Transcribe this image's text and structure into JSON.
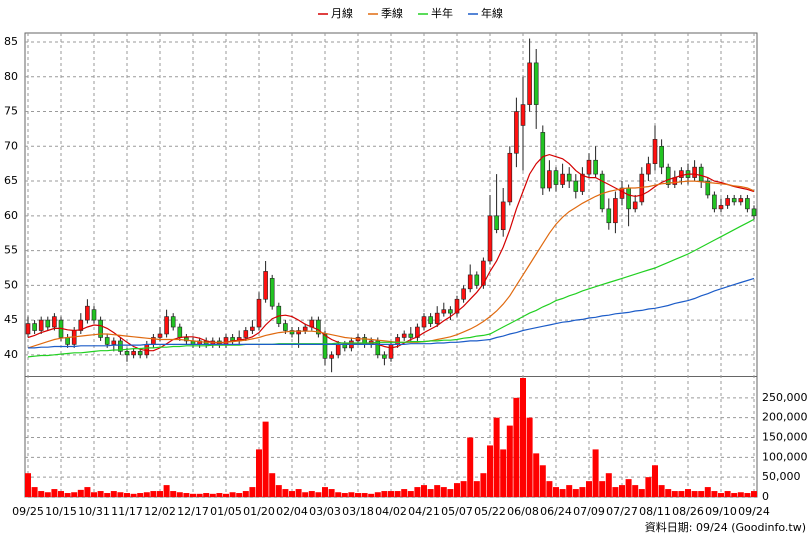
{
  "chart_data": [
    {
      "type": "candlestick",
      "categories": [
        "09/25",
        null,
        null,
        null,
        null,
        "10/15",
        null,
        null,
        null,
        null,
        "10/31",
        null,
        null,
        null,
        null,
        "11/17",
        null,
        null,
        null,
        null,
        "12/02",
        null,
        null,
        null,
        null,
        "12/17",
        null,
        null,
        null,
        null,
        "01/05",
        null,
        null,
        null,
        null,
        "01/20",
        null,
        null,
        null,
        null,
        "02/04",
        null,
        null,
        null,
        null,
        "03/03",
        null,
        null,
        null,
        null,
        "03/18",
        null,
        null,
        null,
        null,
        "04/02",
        null,
        null,
        null,
        null,
        "04/21",
        null,
        null,
        null,
        null,
        "05/07",
        null,
        null,
        null,
        null,
        "05/22",
        null,
        null,
        null,
        null,
        "06/08",
        null,
        null,
        null,
        null,
        "06/24",
        null,
        null,
        null,
        null,
        "07/09",
        null,
        null,
        null,
        null,
        "07/27",
        null,
        null,
        null,
        null,
        "08/11",
        null,
        null,
        null,
        null,
        "08/26",
        null,
        null,
        null,
        null,
        "09/10",
        null,
        null,
        null,
        null,
        "09/24"
      ],
      "open": [
        43.0,
        44.5,
        43.5,
        45.0,
        44.0,
        45.0,
        42.5,
        41.5,
        43.5,
        45.0,
        46.5,
        45.0,
        42.5,
        41.5,
        42.0,
        40.5,
        40.0,
        40.5,
        40.0,
        41.5,
        42.5,
        43.0,
        45.5,
        44.0,
        42.5,
        42.0,
        41.5,
        42.0,
        41.5,
        42.0,
        41.5,
        42.5,
        42.0,
        42.5,
        43.5,
        44.0,
        48.0,
        51.0,
        47.0,
        44.5,
        43.5,
        43.0,
        43.5,
        44.0,
        45.0,
        43.0,
        39.5,
        40.0,
        41.5,
        41.0,
        42.0,
        42.5,
        41.5,
        42.0,
        40.0,
        39.5,
        41.5,
        42.5,
        43.0,
        42.5,
        44.0,
        45.5,
        44.5,
        46.0,
        46.5,
        46.0,
        48.0,
        49.5,
        51.5,
        50.0,
        53.5,
        60.0,
        58.0,
        62.0,
        69.0,
        73.0,
        76.0,
        82.0,
        72.0,
        64.0,
        66.5,
        64.5,
        66.0,
        65.0,
        63.5,
        66.0,
        68.0,
        66.0,
        61.0,
        59.0,
        62.5,
        64.0,
        61.0,
        62.0,
        66.0,
        67.5,
        70.0,
        67.0,
        64.5,
        65.5,
        66.5,
        65.5,
        67.0,
        65.0,
        63.0,
        61.0,
        61.5,
        62.5,
        62.0,
        62.5,
        61.0
      ],
      "high": [
        45.5,
        45.0,
        45.5,
        45.5,
        46.0,
        45.5,
        43.0,
        44.0,
        46.0,
        48.0,
        47.0,
        45.5,
        43.0,
        42.5,
        42.5,
        41.0,
        41.0,
        41.0,
        42.0,
        43.0,
        44.0,
        46.5,
        46.0,
        44.5,
        43.0,
        42.5,
        42.5,
        42.5,
        42.5,
        42.5,
        43.0,
        43.0,
        43.5,
        44.0,
        45.0,
        49.0,
        53.5,
        51.5,
        47.5,
        45.0,
        44.0,
        44.0,
        44.5,
        45.5,
        45.5,
        43.5,
        40.5,
        42.0,
        42.0,
        42.5,
        43.0,
        43.0,
        42.5,
        42.5,
        40.5,
        42.0,
        43.0,
        43.5,
        44.0,
        44.5,
        46.0,
        46.0,
        47.0,
        47.5,
        47.0,
        48.5,
        50.0,
        53.0,
        52.0,
        54.0,
        63.0,
        66.0,
        64.0,
        70.0,
        77.0,
        80.0,
        85.5,
        84.0,
        73.0,
        68.0,
        67.0,
        67.5,
        67.0,
        66.0,
        67.0,
        69.0,
        70.0,
        66.5,
        62.5,
        63.5,
        65.0,
        64.5,
        63.0,
        67.0,
        68.5,
        73.0,
        71.0,
        67.5,
        66.5,
        67.0,
        67.5,
        68.0,
        67.5,
        65.5,
        63.5,
        62.5,
        63.0,
        63.0,
        63.0,
        63.0,
        61.5
      ],
      "low": [
        42.5,
        43.0,
        43.0,
        43.5,
        43.5,
        42.0,
        41.0,
        41.0,
        43.0,
        44.5,
        44.5,
        42.0,
        41.0,
        40.5,
        40.0,
        39.0,
        39.5,
        39.5,
        39.5,
        41.0,
        42.0,
        42.5,
        43.5,
        42.0,
        41.5,
        41.0,
        41.0,
        41.0,
        41.0,
        41.0,
        41.0,
        41.5,
        41.5,
        42.0,
        43.0,
        43.5,
        47.5,
        46.5,
        44.0,
        43.0,
        42.5,
        41.0,
        43.0,
        43.5,
        42.5,
        38.5,
        37.5,
        39.5,
        40.5,
        40.5,
        41.5,
        41.0,
        41.0,
        39.5,
        38.5,
        39.0,
        41.0,
        42.0,
        42.0,
        42.0,
        43.5,
        44.0,
        44.0,
        45.5,
        45.0,
        45.5,
        47.5,
        49.0,
        49.5,
        49.5,
        53.0,
        57.5,
        57.0,
        61.5,
        67.0,
        66.5,
        75.0,
        72.5,
        63.0,
        63.5,
        63.5,
        64.0,
        64.0,
        62.5,
        63.0,
        65.5,
        65.5,
        60.5,
        58.0,
        57.5,
        61.5,
        58.5,
        60.5,
        61.5,
        65.0,
        66.5,
        66.0,
        64.0,
        64.0,
        64.5,
        64.5,
        65.0,
        64.0,
        62.5,
        60.5,
        60.5,
        61.0,
        61.5,
        61.5,
        60.5,
        59.5
      ],
      "close": [
        44.5,
        43.5,
        45.0,
        44.0,
        45.5,
        42.5,
        41.5,
        43.5,
        45.0,
        47.0,
        45.0,
        42.5,
        41.5,
        42.0,
        40.5,
        40.0,
        40.5,
        40.0,
        41.5,
        42.5,
        43.0,
        45.5,
        44.0,
        42.5,
        42.0,
        41.5,
        42.0,
        41.5,
        42.0,
        41.5,
        42.5,
        42.0,
        42.5,
        43.5,
        44.0,
        48.0,
        52.0,
        47.0,
        44.5,
        43.5,
        43.0,
        43.5,
        44.0,
        45.0,
        43.0,
        39.5,
        40.0,
        41.5,
        41.0,
        42.0,
        42.5,
        41.5,
        42.0,
        40.0,
        39.5,
        41.5,
        42.5,
        43.0,
        42.5,
        44.0,
        45.5,
        44.5,
        46.0,
        46.5,
        46.0,
        48.0,
        49.5,
        51.5,
        50.0,
        53.5,
        60.0,
        58.0,
        62.0,
        69.0,
        75.0,
        76.0,
        82.0,
        76.0,
        64.0,
        66.5,
        64.5,
        66.0,
        65.0,
        63.5,
        66.0,
        68.0,
        66.0,
        61.0,
        59.0,
        62.5,
        64.0,
        61.0,
        62.0,
        66.0,
        67.5,
        71.0,
        67.0,
        64.5,
        65.5,
        66.5,
        65.5,
        67.0,
        65.0,
        63.0,
        61.0,
        61.5,
        62.5,
        62.0,
        62.5,
        61.0,
        60.0
      ],
      "up_color": "#ff1010",
      "down_color": "#22c422",
      "series": [
        {
          "name": "月線",
          "color": "#d40000",
          "values": [
            42.5,
            42.8,
            43.2,
            43.5,
            43.8,
            43.8,
            43.6,
            43.5,
            43.6,
            44.0,
            44.3,
            44.2,
            43.8,
            43.2,
            42.5,
            41.8,
            41.2,
            40.8,
            40.6,
            40.6,
            41.0,
            41.6,
            42.2,
            42.5,
            42.6,
            42.6,
            42.4,
            42.0,
            41.8,
            41.7,
            41.8,
            42.0,
            42.1,
            42.3,
            42.6,
            43.2,
            44.3,
            45.2,
            45.6,
            45.7,
            45.5,
            45.0,
            44.4,
            44.0,
            43.6,
            42.8,
            42.2,
            41.8,
            41.6,
            41.6,
            41.6,
            41.7,
            41.6,
            41.5,
            41.2,
            41.0,
            41.2,
            41.7,
            42.2,
            42.6,
            43.2,
            43.7,
            44.2,
            44.9,
            45.5,
            46.2,
            47.0,
            48.0,
            49.0,
            50.2,
            52.0,
            53.5,
            55.5,
            58.0,
            61.0,
            63.5,
            66.0,
            67.5,
            68.5,
            68.8,
            68.5,
            68.2,
            67.5,
            66.5,
            65.8,
            65.5,
            65.5,
            65.0,
            64.5,
            64.0,
            63.5,
            63.0,
            62.8,
            63.0,
            63.5,
            64.2,
            64.8,
            65.2,
            65.5,
            65.8,
            66.0,
            66.0,
            65.8,
            65.5,
            65.0,
            64.8,
            64.5,
            64.2,
            64.0,
            63.8,
            63.5
          ]
        },
        {
          "name": "季線",
          "color": "#e06a10",
          "values": [
            41.0,
            41.3,
            41.6,
            41.9,
            42.2,
            42.4,
            42.5,
            42.6,
            42.7,
            42.8,
            42.9,
            43.0,
            43.0,
            42.9,
            42.8,
            42.7,
            42.6,
            42.5,
            42.4,
            42.3,
            42.2,
            42.2,
            42.2,
            42.2,
            42.1,
            42.0,
            41.9,
            41.8,
            41.8,
            41.8,
            41.8,
            41.9,
            42.0,
            42.1,
            42.3,
            42.5,
            42.8,
            43.0,
            43.2,
            43.3,
            43.4,
            43.4,
            43.4,
            43.4,
            43.3,
            43.1,
            42.9,
            42.7,
            42.5,
            42.4,
            42.3,
            42.3,
            42.2,
            42.1,
            42.0,
            41.9,
            41.8,
            41.8,
            41.8,
            41.8,
            41.9,
            42.0,
            42.2,
            42.4,
            42.6,
            42.9,
            43.3,
            43.7,
            44.2,
            44.8,
            45.5,
            46.3,
            47.3,
            48.5,
            50.0,
            51.5,
            53.0,
            54.5,
            56.0,
            57.5,
            58.8,
            59.8,
            60.6,
            61.2,
            61.8,
            62.3,
            62.8,
            63.2,
            63.5,
            63.7,
            63.9,
            64.0,
            64.0,
            64.1,
            64.2,
            64.4,
            64.6,
            64.7,
            64.8,
            64.9,
            65.0,
            65.0,
            64.9,
            64.8,
            64.7,
            64.6,
            64.5,
            64.3,
            64.2,
            64.0,
            63.6
          ]
        },
        {
          "name": "半年",
          "color": "#22d022",
          "values": [
            39.7,
            39.8,
            39.9,
            39.9,
            40.0,
            40.1,
            40.2,
            40.3,
            40.3,
            40.4,
            40.5,
            40.6,
            40.6,
            40.7,
            40.7,
            40.8,
            40.9,
            40.9,
            41.0,
            41.0,
            41.1,
            41.1,
            41.2,
            41.2,
            41.3,
            41.3,
            41.3,
            41.3,
            41.4,
            41.4,
            41.4,
            41.4,
            41.4,
            41.5,
            41.5,
            41.5,
            41.5,
            41.5,
            41.6,
            41.6,
            41.6,
            41.6,
            41.6,
            41.6,
            41.6,
            41.6,
            41.6,
            41.7,
            41.7,
            41.7,
            41.7,
            41.7,
            41.7,
            41.8,
            41.8,
            41.8,
            41.8,
            41.8,
            41.9,
            41.9,
            41.9,
            42.0,
            42.0,
            42.1,
            42.1,
            42.2,
            42.4,
            42.5,
            42.7,
            42.8,
            43.0,
            43.5,
            44.0,
            44.5,
            45.0,
            45.5,
            46.0,
            46.4,
            46.9,
            47.3,
            47.8,
            48.1,
            48.5,
            48.8,
            49.2,
            49.5,
            49.8,
            50.1,
            50.4,
            50.7,
            51.0,
            51.3,
            51.6,
            51.9,
            52.2,
            52.5,
            52.9,
            53.3,
            53.7,
            54.1,
            54.5,
            55.0,
            55.5,
            56.0,
            56.5,
            57.0,
            57.5,
            58.0,
            58.5,
            59.0,
            59.5
          ]
        },
        {
          "name": "年線",
          "color": "#1c5cc8",
          "values": [
            41.0,
            41.0,
            41.1,
            41.1,
            41.2,
            41.2,
            41.2,
            41.2,
            41.3,
            41.3,
            41.3,
            41.3,
            41.3,
            41.4,
            41.4,
            41.4,
            41.4,
            41.4,
            41.5,
            41.5,
            41.5,
            41.5,
            41.5,
            41.5,
            41.5,
            41.5,
            41.5,
            41.5,
            41.5,
            41.5,
            41.5,
            41.5,
            41.5,
            41.5,
            41.5,
            41.5,
            41.5,
            41.5,
            41.5,
            41.5,
            41.5,
            41.5,
            41.5,
            41.5,
            41.5,
            41.5,
            41.5,
            41.5,
            41.5,
            41.5,
            41.5,
            41.5,
            41.5,
            41.5,
            41.5,
            41.5,
            41.5,
            41.5,
            41.6,
            41.6,
            41.6,
            41.6,
            41.7,
            41.7,
            41.8,
            41.8,
            41.9,
            42.0,
            42.0,
            42.1,
            42.2,
            42.5,
            42.7,
            43.0,
            43.2,
            43.5,
            43.7,
            43.9,
            44.1,
            44.3,
            44.5,
            44.7,
            44.8,
            45.0,
            45.1,
            45.3,
            45.4,
            45.6,
            45.7,
            45.9,
            46.0,
            46.1,
            46.3,
            46.4,
            46.6,
            46.7,
            46.9,
            47.1,
            47.4,
            47.6,
            47.8,
            48.1,
            48.5,
            48.8,
            49.2,
            49.5,
            49.8,
            50.1,
            50.4,
            50.7,
            51.0
          ]
        }
      ],
      "ylim": [
        37.1,
        86.3
      ],
      "yticks": [
        40,
        45,
        50,
        55,
        60,
        65,
        70,
        75,
        80,
        85
      ],
      "grid": true
    },
    {
      "type": "bar",
      "color": "#ff0000",
      "values": [
        60000,
        25000,
        15000,
        12000,
        20000,
        15000,
        10000,
        12000,
        18000,
        25000,
        12000,
        15000,
        10000,
        15000,
        12000,
        10000,
        8000,
        10000,
        12000,
        15000,
        15000,
        30000,
        15000,
        12000,
        10000,
        8000,
        8000,
        10000,
        8000,
        10000,
        8000,
        12000,
        10000,
        15000,
        25000,
        120000,
        190000,
        60000,
        30000,
        20000,
        15000,
        20000,
        12000,
        15000,
        12000,
        25000,
        20000,
        12000,
        10000,
        12000,
        10000,
        10000,
        8000,
        12000,
        15000,
        15000,
        15000,
        20000,
        15000,
        25000,
        30000,
        20000,
        30000,
        25000,
        20000,
        35000,
        40000,
        150000,
        40000,
        60000,
        130000,
        200000,
        120000,
        180000,
        250000,
        300000,
        200000,
        110000,
        80000,
        40000,
        25000,
        20000,
        30000,
        20000,
        25000,
        40000,
        120000,
        40000,
        60000,
        25000,
        30000,
        45000,
        30000,
        20000,
        50000,
        80000,
        30000,
        20000,
        15000,
        15000,
        20000,
        15000,
        15000,
        25000,
        15000,
        10000,
        15000,
        10000,
        12000,
        10000,
        15000
      ],
      "ylim": [
        0,
        300000
      ],
      "yticks": [
        0,
        {
          "value": 50000,
          "label": "50,000"
        },
        {
          "value": 100000,
          "label": "100,000"
        },
        {
          "value": 150000,
          "label": "150,000"
        },
        {
          "value": 200000,
          "label": "200,000"
        },
        {
          "value": 250000,
          "label": "250,000"
        }
      ],
      "grid": true
    }
  ],
  "footer": "資料日期: 09/24 (Goodinfo.tw)"
}
